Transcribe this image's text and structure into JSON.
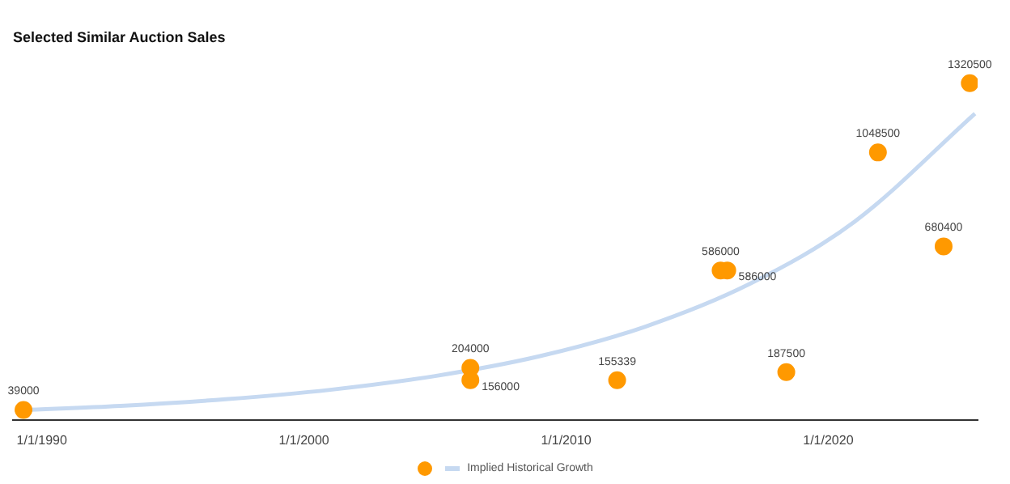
{
  "chart_data": {
    "type": "scatter",
    "title": "Selected Similar Auction Sales",
    "xlim": [
      "1988-11-24",
      "2025-09-13"
    ],
    "xticks": [
      {
        "value": "1990-01-01",
        "label": "1/1/1990"
      },
      {
        "value": "2000-01-01",
        "label": "1/1/2000"
      },
      {
        "value": "2010-01-01",
        "label": "1/1/2010"
      },
      {
        "value": "2020-01-01",
        "label": "1/1/2020"
      }
    ],
    "tick_labels": "x",
    "grid": false,
    "legend": "bottom",
    "marker": "circle",
    "series": [
      {
        "color": "#ff9900",
        "x": [
          "1989-04-20",
          "2006-05-08",
          "2006-05-08",
          "2011-12-13",
          "2015-11-24",
          "2016-02-24",
          "2018-05-27",
          "2021-11-24",
          "2024-05-27",
          "2025-05-27"
        ],
        "values": [
          39000,
          204000,
          156000,
          155339,
          586000,
          586000,
          187500,
          1048500,
          680400,
          1320500
        ],
        "value_labels": [
          "39000",
          "204000",
          "156000",
          "155339",
          "586000",
          "586000",
          "187500",
          "1048500",
          "680400",
          "1320500"
        ]
      },
      {
        "type": "line",
        "name": "Implied Historical Growth",
        "color": "#c6d9f1",
        "line_style": "solid",
        "marker": "none",
        "x": [
          "1989-04-20",
          "1993-01-01",
          "1997-01-01",
          "2001-01-01",
          "2005-01-01",
          "2009-01-01",
          "2013-01-01",
          "2017-01-01",
          "2021-01-01",
          "2025-08-07"
        ],
        "values": [
          39000,
          55000,
          81000,
          118000,
          172000,
          250000,
          365000,
          533000,
          777000,
          1201000
        ]
      }
    ]
  }
}
